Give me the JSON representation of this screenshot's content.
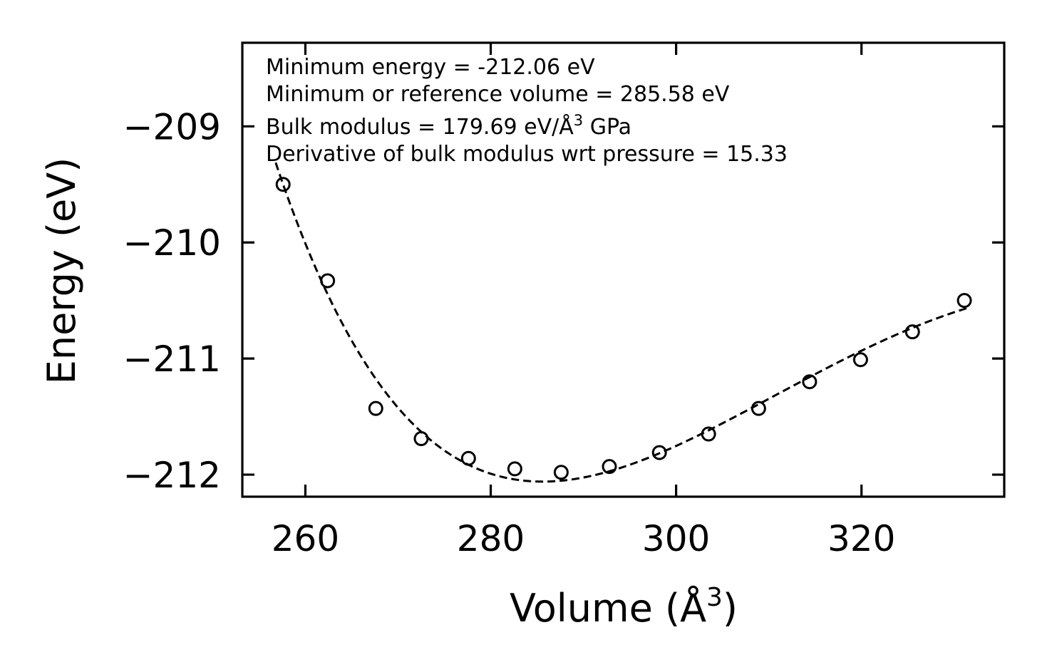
{
  "chart_data": {
    "type": "scatter",
    "xlabel_text": "Volume (Å",
    "xlabel_sup": "3",
    "xlabel_close": ")",
    "ylabel": "Energy (eV)",
    "xlim": [
      253.2,
      335.4
    ],
    "ylim": [
      -212.19,
      -208.28
    ],
    "x_ticks": [
      260,
      280,
      300,
      320
    ],
    "y_ticks": [
      -212,
      -211,
      -210,
      -209
    ],
    "x_tick_labels": [
      "260",
      "280",
      "300",
      "320"
    ],
    "y_tick_labels": [
      "−212",
      "−211",
      "−210",
      "−209"
    ],
    "grid": false,
    "series": [
      {
        "marker": "open-circle",
        "color": "#000000",
        "x": [
          257.6,
          262.4,
          267.6,
          272.5,
          277.6,
          282.6,
          287.6,
          292.8,
          298.2,
          303.5,
          308.9,
          314.4,
          319.9,
          325.5,
          331.1
        ],
        "y": [
          -209.5,
          -210.33,
          -211.43,
          -211.69,
          -211.86,
          -211.95,
          -211.98,
          -211.93,
          -211.81,
          -211.65,
          -211.43,
          -211.2,
          -211.01,
          -210.77,
          -210.5
        ]
      }
    ],
    "fit": {
      "style": "dashed",
      "color": "#000000",
      "equation_of_state": "birch-murnaghan",
      "E0": -212.06,
      "V0": 285.58,
      "B0": 179.69,
      "B0_prime": 15.33,
      "x_range": [
        256.8,
        331.4
      ]
    },
    "annotations": [
      {
        "text": "Minimum energy = -212.06 eV"
      },
      {
        "text": "Minimum or reference volume = 285.58 eV"
      },
      {
        "text": "Bulk modulus = 179.69 eV/Å",
        "sup": "3",
        "suffix": " GPa"
      },
      {
        "text": "Derivative of bulk modulus wrt pressure = 15.33"
      }
    ]
  }
}
